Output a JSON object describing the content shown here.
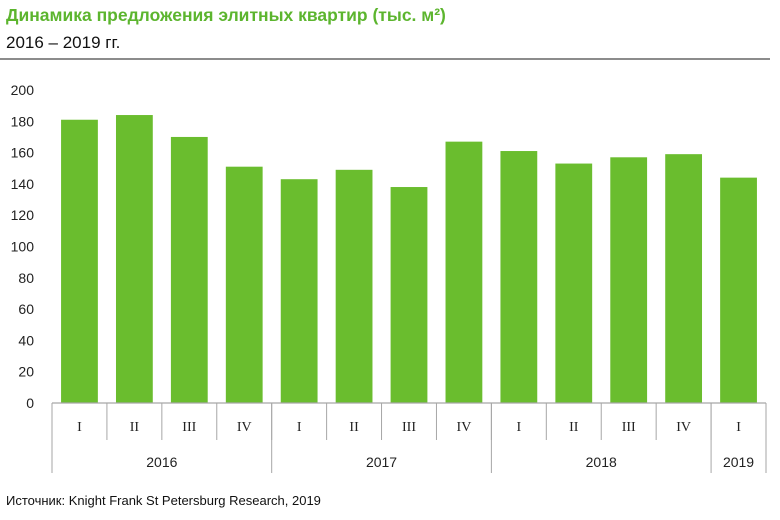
{
  "title": "Динамика предложения элитных квартир (тыс. м²)",
  "subtitle": "2016 – 2019 гг.",
  "source": "Источник: Knight Frank St Petersburg Research, 2019",
  "colors": {
    "bar": "#6abd2e",
    "title": "#5cb52e",
    "axis": "#a6a6a6"
  },
  "chart_data": {
    "type": "bar",
    "categories": [
      "I",
      "II",
      "III",
      "IV",
      "I",
      "II",
      "III",
      "IV",
      "I",
      "II",
      "III",
      "IV",
      "I"
    ],
    "groups": [
      {
        "label": "2016",
        "count": 4
      },
      {
        "label": "2017",
        "count": 4
      },
      {
        "label": "2018",
        "count": 4
      },
      {
        "label": "2019",
        "count": 1
      }
    ],
    "values": [
      181,
      184,
      170,
      151,
      143,
      149,
      138,
      167,
      161,
      153,
      157,
      159,
      144
    ],
    "ylim": [
      0,
      200
    ],
    "yticks": [
      0,
      20,
      40,
      60,
      80,
      100,
      120,
      140,
      160,
      180,
      200
    ],
    "grid": false,
    "legend": "none"
  }
}
